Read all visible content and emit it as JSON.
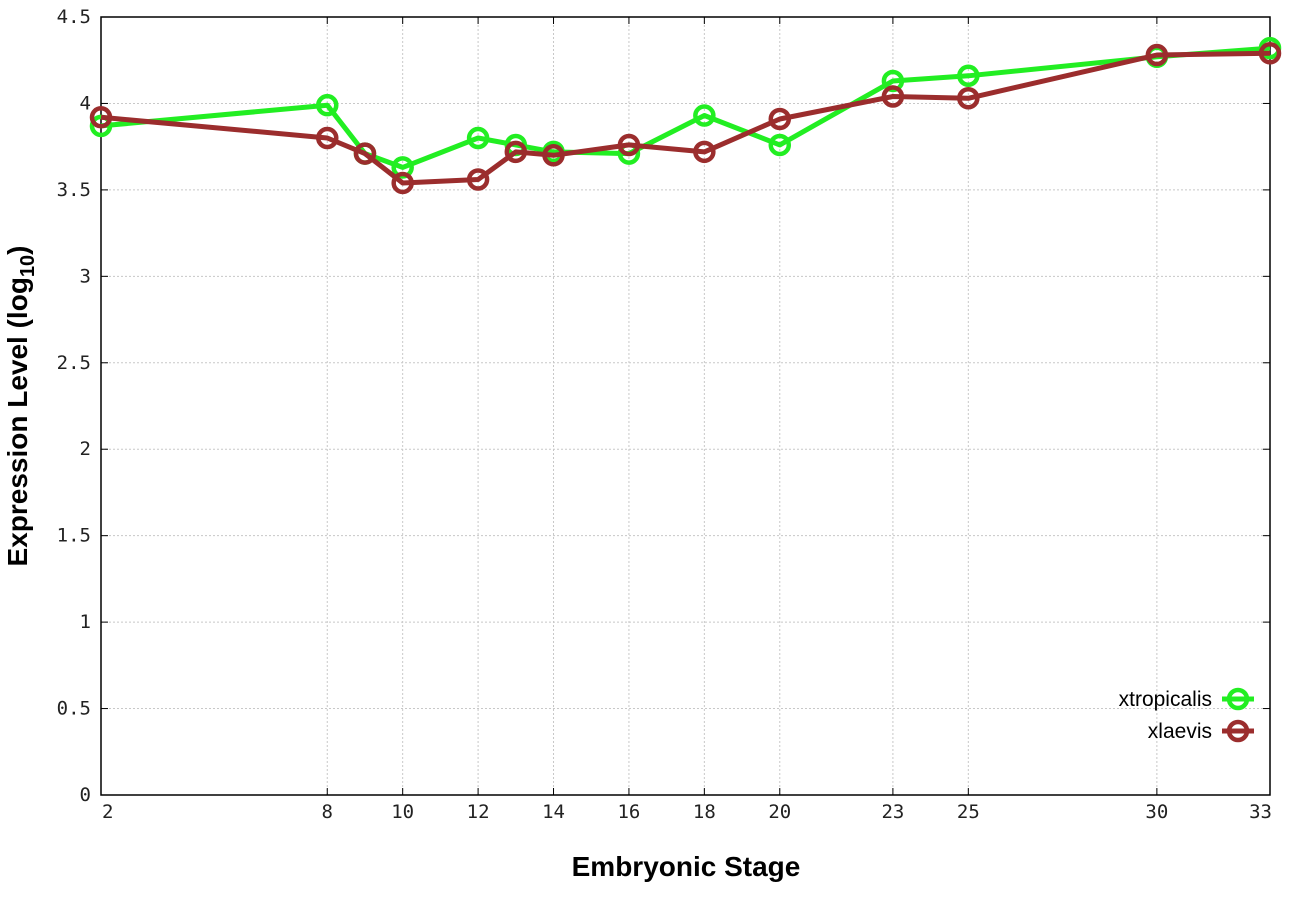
{
  "chart_data": {
    "type": "line",
    "title": "",
    "xlabel": "Embryonic Stage",
    "ylabel_main": "Expression Level (log",
    "ylabel_sub": "10",
    "ylabel_close": ")",
    "xlim": [
      2,
      33
    ],
    "ylim": [
      0,
      4.5
    ],
    "xticks": [
      2,
      8,
      10,
      12,
      14,
      16,
      18,
      20,
      23,
      25,
      30,
      33
    ],
    "yticks": [
      0,
      0.5,
      1,
      1.5,
      2,
      2.5,
      3,
      3.5,
      4,
      4.5
    ],
    "ytick_labels": [
      "0",
      "0.5",
      "1",
      "1.5",
      "2",
      "2.5",
      "3",
      "3.5",
      "4",
      "4.5"
    ],
    "grid": true,
    "legend_position": "bottom-right",
    "x": [
      2,
      8,
      9,
      10,
      12,
      13,
      14,
      16,
      18,
      20,
      23,
      25,
      30,
      33
    ],
    "series": [
      {
        "name": "xtropicalis",
        "color": "#22ee22",
        "values": [
          3.87,
          3.99,
          3.71,
          3.63,
          3.8,
          3.76,
          3.72,
          3.71,
          3.93,
          3.76,
          4.13,
          4.16,
          4.27,
          4.32
        ]
      },
      {
        "name": "xlaevis",
        "color": "#9b2d2d",
        "values": [
          3.92,
          3.8,
          3.71,
          3.54,
          3.56,
          3.72,
          3.7,
          3.76,
          3.72,
          3.91,
          4.04,
          4.03,
          4.28,
          4.29
        ]
      }
    ]
  }
}
